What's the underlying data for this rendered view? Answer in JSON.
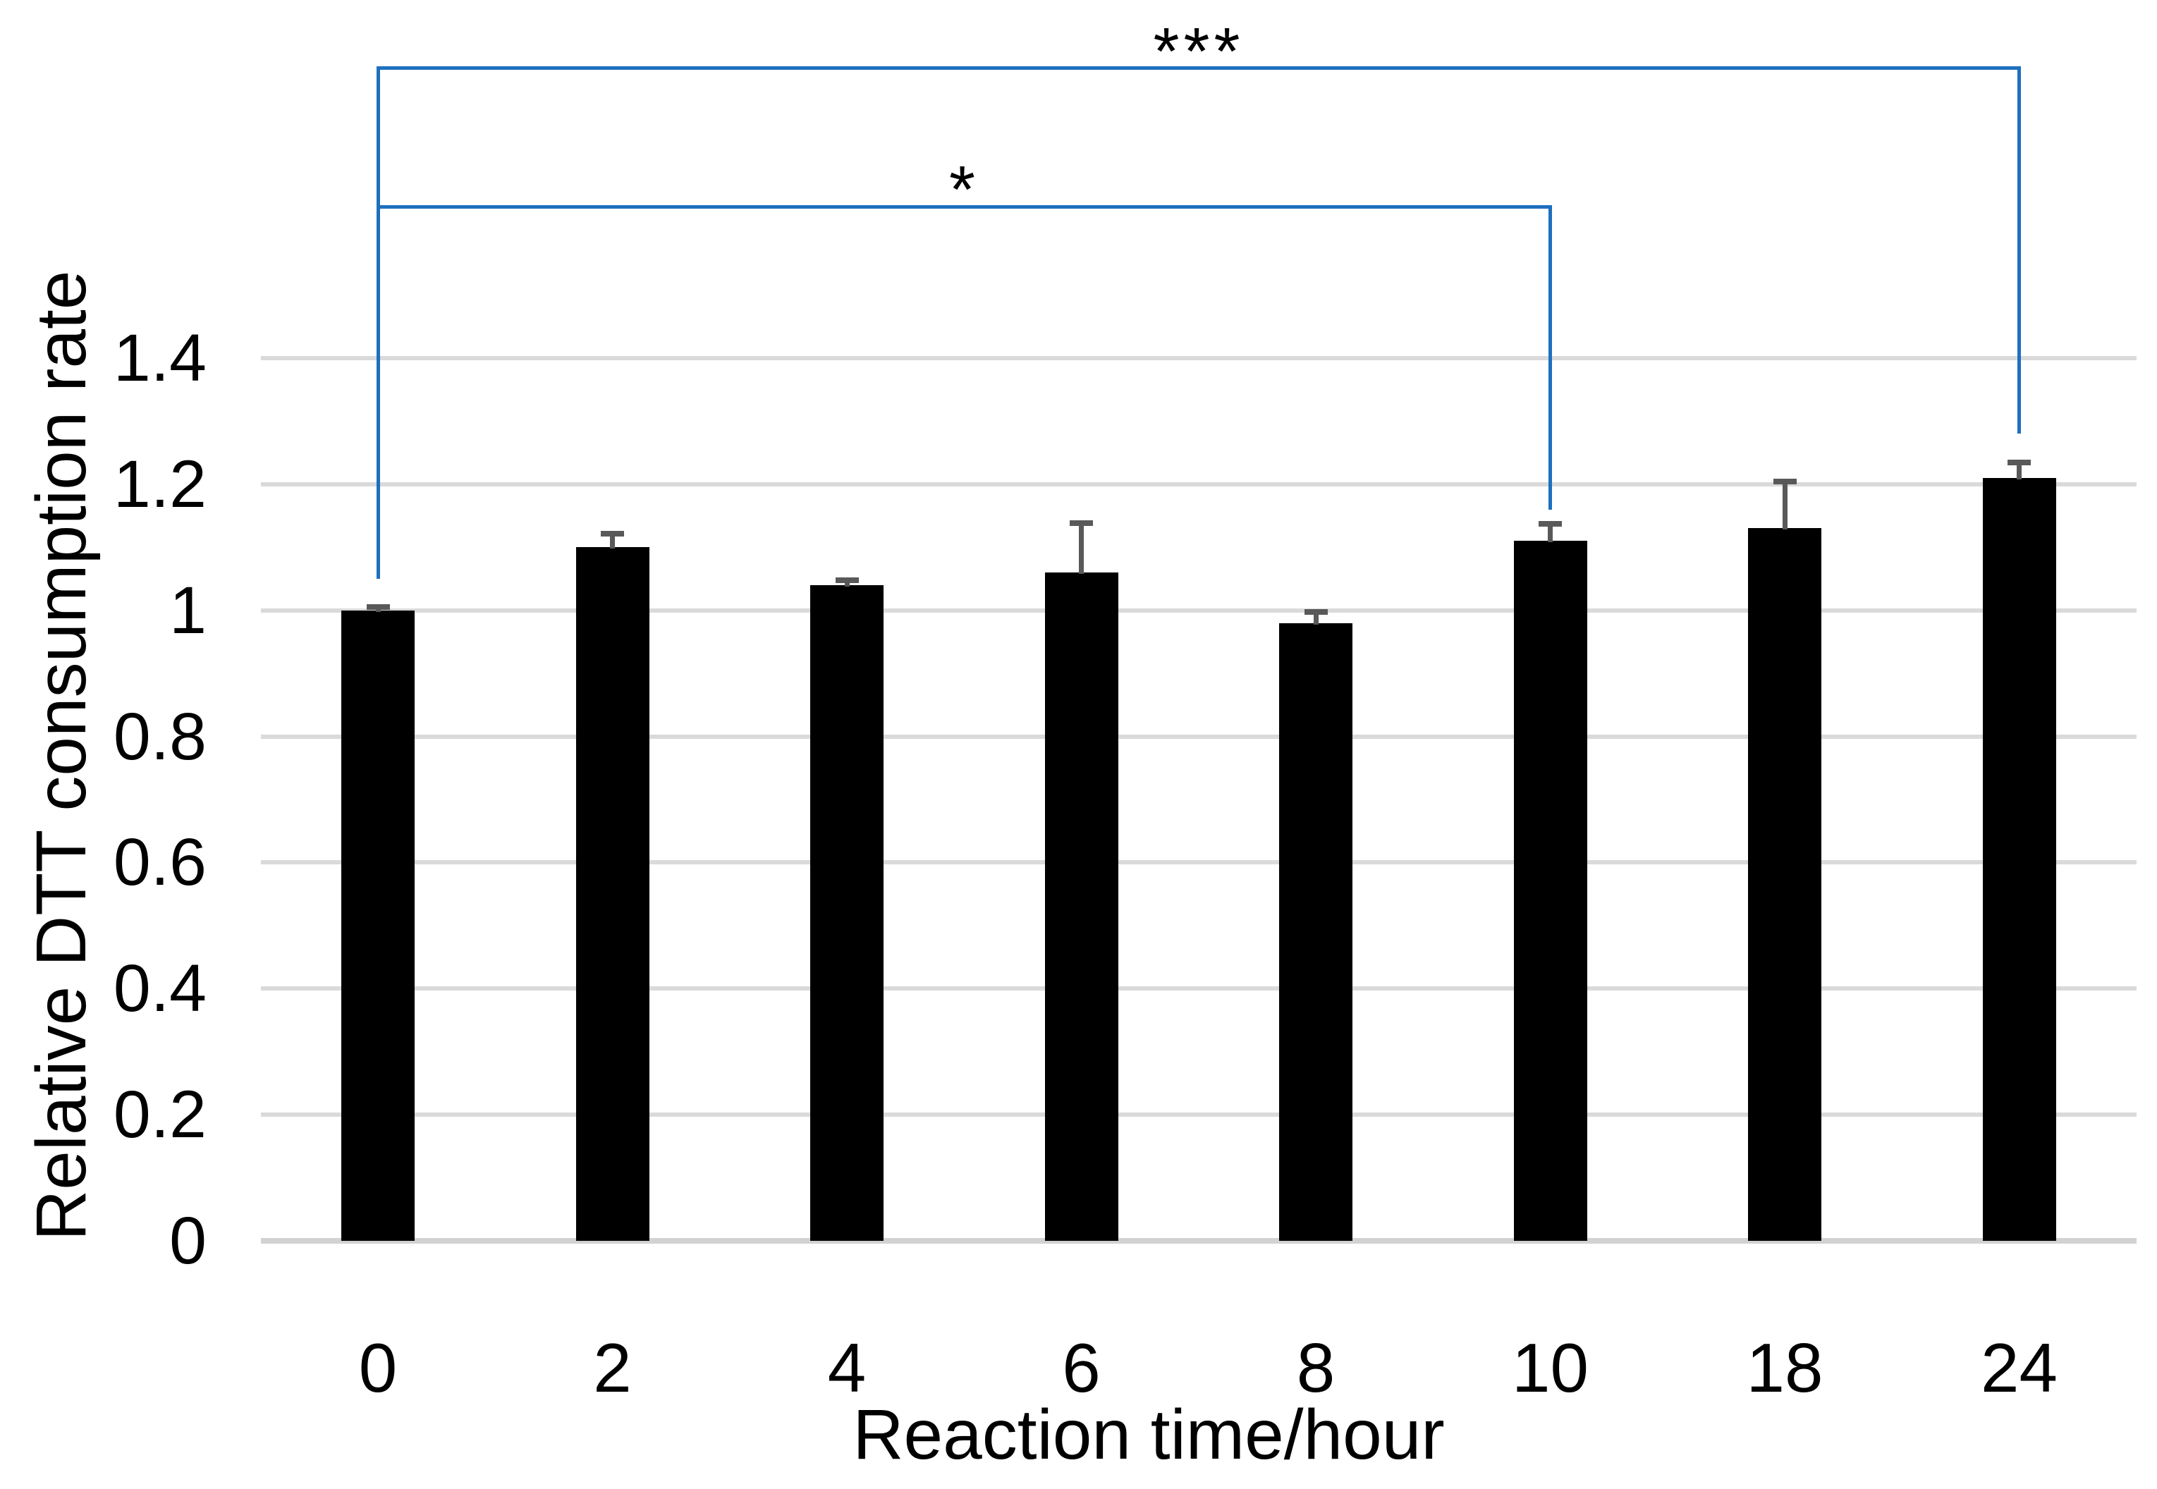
{
  "chart_data": {
    "type": "bar",
    "title": "",
    "xlabel": "Reaction time/hour",
    "ylabel": "Relative DTT consumption rate",
    "categories": [
      "0",
      "2",
      "4",
      "6",
      "8",
      "10",
      "18",
      "24"
    ],
    "values": [
      1.0,
      1.1,
      1.04,
      1.06,
      0.98,
      1.11,
      1.13,
      1.21
    ],
    "errors": [
      0.005,
      0.022,
      0.008,
      0.078,
      0.018,
      0.027,
      0.074,
      0.025
    ],
    "ylim": [
      0,
      1.4
    ],
    "yticks": [
      {
        "label": "1.4",
        "v": 1.4
      },
      {
        "label": "1.2",
        "v": 1.2
      },
      {
        "label": "1",
        "v": 1.0
      },
      {
        "label": "0.8",
        "v": 0.8
      },
      {
        "label": "0.6",
        "v": 0.6
      },
      {
        "label": "0.4",
        "v": 0.4
      },
      {
        "label": "0.2",
        "v": 0.2
      },
      {
        "label": "0",
        "v": 0.0
      }
    ],
    "grid": "horizontal",
    "legend": "none",
    "bar_color": "#000000",
    "error_color": "#595959",
    "grid_color": "#DADADA",
    "axis_line_color": "#D2D2D2",
    "bracket_color": "#1E70BF",
    "sig_brackets": [
      {
        "label": "***",
        "from": 0,
        "to": 7,
        "line_v": 1.86,
        "left_end_v": 1.05,
        "right_end_v": 1.28
      },
      {
        "label": "*",
        "from": 0,
        "to": 5,
        "line_v": 1.64,
        "left_end_v": 1.05,
        "right_end_v": 1.16
      }
    ]
  }
}
